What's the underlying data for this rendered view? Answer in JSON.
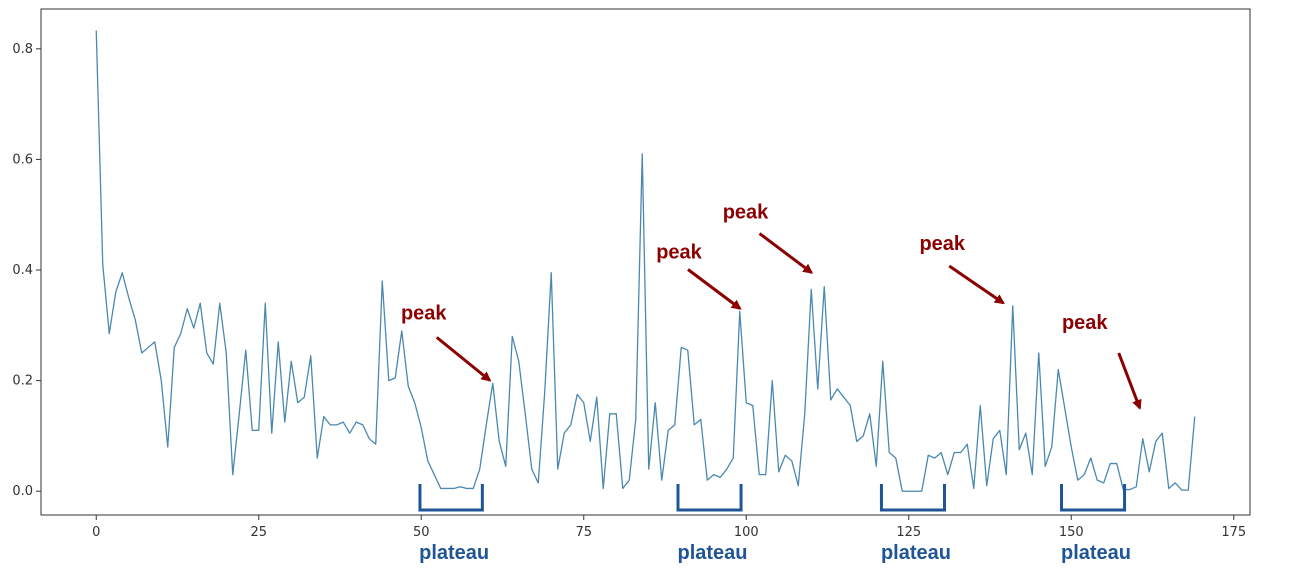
{
  "chart_data": {
    "type": "line",
    "title": "",
    "xlabel": "",
    "ylabel": "",
    "xlim": [
      -8.5,
      177.5
    ],
    "ylim": [
      -0.043,
      0.872
    ],
    "x_ticks": [
      0,
      25,
      50,
      75,
      100,
      125,
      150,
      175
    ],
    "y_ticks": [
      0.0,
      0.2,
      0.4,
      0.6,
      0.8
    ],
    "x_tick_labels": [
      "0",
      "25",
      "50",
      "75",
      "100",
      "125",
      "150",
      "175"
    ],
    "y_tick_labels": [
      "0.0",
      "0.2",
      "0.4",
      "0.6",
      "0.8"
    ],
    "grid": false,
    "line_color": "#4a88b0",
    "series": [
      {
        "x_start": 0,
        "values": [
          0.833,
          0.41,
          0.285,
          0.36,
          0.395,
          0.35,
          0.31,
          0.25,
          0.26,
          0.27,
          0.2,
          0.08,
          0.26,
          0.285,
          0.33,
          0.295,
          0.34,
          0.25,
          0.23,
          0.34,
          0.25,
          0.03,
          0.14,
          0.255,
          0.11,
          0.11,
          0.34,
          0.105,
          0.27,
          0.125,
          0.235,
          0.16,
          0.17,
          0.245,
          0.06,
          0.135,
          0.12,
          0.12,
          0.125,
          0.105,
          0.125,
          0.12,
          0.095,
          0.085,
          0.38,
          0.2,
          0.205,
          0.29,
          0.19,
          0.16,
          0.115,
          0.055,
          0.03,
          0.005,
          0.005,
          0.005,
          0.008,
          0.005,
          0.005,
          0.04,
          0.12,
          0.195,
          0.09,
          0.045,
          0.28,
          0.235,
          0.14,
          0.04,
          0.015,
          0.18,
          0.395,
          0.04,
          0.105,
          0.12,
          0.175,
          0.16,
          0.09,
          0.17,
          0.005,
          0.14,
          0.14,
          0.005,
          0.02,
          0.13,
          0.61,
          0.04,
          0.16,
          0.02,
          0.11,
          0.12,
          0.26,
          0.255,
          0.12,
          0.13,
          0.02,
          0.03,
          0.025,
          0.04,
          0.06,
          0.325,
          0.16,
          0.155,
          0.03,
          0.03,
          0.2,
          0.035,
          0.065,
          0.055,
          0.01,
          0.14,
          0.365,
          0.185,
          0.37,
          0.165,
          0.185,
          0.17,
          0.155,
          0.09,
          0.1,
          0.14,
          0.045,
          0.235,
          0.07,
          0.06,
          0.0,
          0.0,
          0.0,
          0.0,
          0.065,
          0.06,
          0.07,
          0.03,
          0.07,
          0.07,
          0.085,
          0.005,
          0.155,
          0.01,
          0.095,
          0.11,
          0.03,
          0.335,
          0.075,
          0.105,
          0.03,
          0.25,
          0.045,
          0.08,
          0.22,
          0.15,
          0.08,
          0.02,
          0.03,
          0.06,
          0.02,
          0.015,
          0.05,
          0.05,
          0.003,
          0.003,
          0.008,
          0.095,
          0.035,
          0.09,
          0.105,
          0.005,
          0.015,
          0.002,
          0.002,
          0.135
        ]
      }
    ],
    "annotations": {
      "peak_color": "#8b0000",
      "plateau_color": "#1f5597",
      "peaks": [
        {
          "label": "peak",
          "target_x": 61,
          "target_y": 0.195
        },
        {
          "label": "peak",
          "target_x": 99.5,
          "target_y": 0.325
        },
        {
          "label": "peak",
          "target_x": 110.5,
          "target_y": 0.39
        },
        {
          "label": "peak",
          "target_x": 140,
          "target_y": 0.335
        },
        {
          "label": "peak",
          "target_x": 161,
          "target_y": 0.145
        }
      ],
      "plateaus": [
        {
          "label": "plateau",
          "x_start": 49.8,
          "x_end": 59.4
        },
        {
          "label": "plateau",
          "x_start": 89.5,
          "x_end": 99.2
        },
        {
          "label": "plateau",
          "x_start": 120.8,
          "x_end": 130.5
        },
        {
          "label": "plateau",
          "x_start": 148.5,
          "x_end": 158.2
        }
      ]
    }
  }
}
